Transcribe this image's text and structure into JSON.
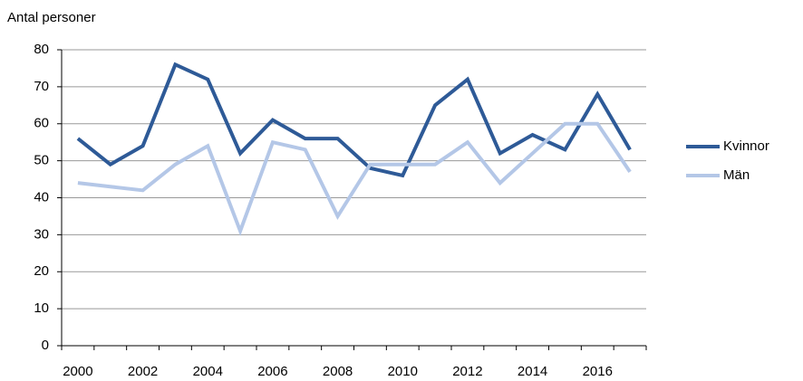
{
  "chart_data": {
    "type": "line",
    "y_axis_label": "Antal personer",
    "categories": [
      "2000",
      null,
      "2002",
      null,
      "2004",
      null,
      "2006",
      null,
      "2008",
      null,
      "2010",
      null,
      "2012",
      null,
      "2014",
      null,
      "2016",
      null
    ],
    "series": [
      {
        "name": "Kvinnor",
        "color": "#2e5a97",
        "values": [
          56,
          49,
          54,
          76,
          72,
          52,
          61,
          56,
          56,
          48,
          46,
          65,
          72,
          52,
          57,
          53,
          68,
          53
        ]
      },
      {
        "name": "Män",
        "color": "#b4c7e7",
        "values": [
          44,
          43,
          42,
          49,
          54,
          31,
          55,
          53,
          35,
          49,
          49,
          49,
          55,
          44,
          52,
          60,
          60,
          47
        ]
      }
    ],
    "ylim": [
      0,
      80
    ],
    "yticks": [
      0,
      10,
      20,
      30,
      40,
      50,
      60,
      70,
      80
    ],
    "grid": true,
    "legend": "right"
  }
}
